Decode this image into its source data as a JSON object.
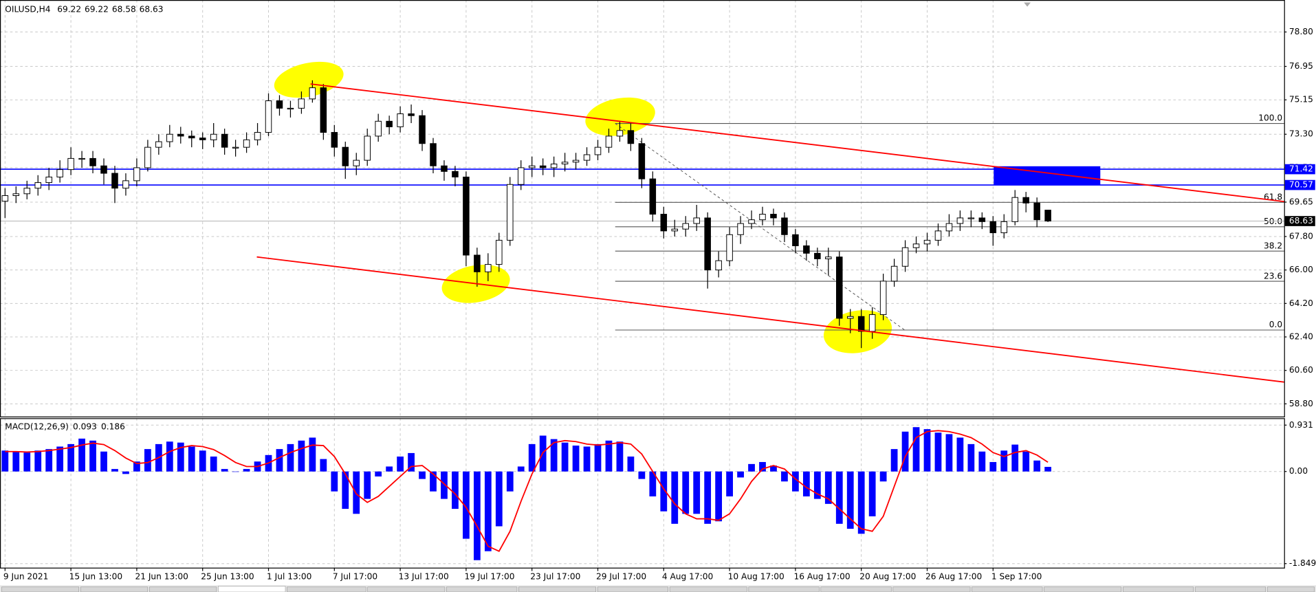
{
  "chart_data": [
    {
      "type": "candlestick",
      "title": "OILUSD,H4",
      "categories": [
        "9 Jun 2021",
        null,
        null,
        null,
        null,
        null,
        "15 Jun 13:00",
        null,
        null,
        null,
        null,
        null,
        "21 Jun 13:00",
        null,
        null,
        null,
        null,
        null,
        "25 Jun 13:00",
        null,
        null,
        null,
        null,
        null,
        "1 Jul 13:00",
        null,
        null,
        null,
        null,
        null,
        "7 Jul 17:00",
        null,
        null,
        null,
        null,
        null,
        "13 Jul 17:00",
        null,
        null,
        null,
        null,
        null,
        "19 Jul 17:00",
        null,
        null,
        null,
        null,
        null,
        "23 Jul 17:00",
        null,
        null,
        null,
        null,
        null,
        "29 Jul 17:00",
        null,
        null,
        null,
        null,
        null,
        "4 Aug 17:00",
        null,
        null,
        null,
        null,
        null,
        "10 Aug 17:00",
        null,
        null,
        null,
        null,
        null,
        "16 Aug 17:00",
        null,
        null,
        null,
        null,
        null,
        "20 Aug 17:00",
        null,
        null,
        null,
        null,
        null,
        "26 Aug 17:00",
        null,
        null,
        null,
        null,
        null,
        "1 Sep 17:00",
        null,
        null,
        null,
        null,
        null
      ],
      "open": [
        69.7,
        70.0,
        70.1,
        70.4,
        70.7,
        71.0,
        71.4,
        72.0,
        72.0,
        71.6,
        71.2,
        70.4,
        70.8,
        71.5,
        72.6,
        72.9,
        73.3,
        73.2,
        73.1,
        73.0,
        73.3,
        72.6,
        72.6,
        73.0,
        73.4,
        75.1,
        74.7,
        74.7,
        75.2,
        75.8,
        73.4,
        72.6,
        71.6,
        71.9,
        73.2,
        74.0,
        73.7,
        74.4,
        74.3,
        72.8,
        71.6,
        71.3,
        71.0,
        66.8,
        65.9,
        66.3,
        67.6,
        70.6,
        71.5,
        71.6,
        71.5,
        71.7,
        71.8,
        71.9,
        72.2,
        72.6,
        73.2,
        73.5,
        72.8,
        70.9,
        69.0,
        68.1,
        68.2,
        68.5,
        68.8,
        66.0,
        66.5,
        67.9,
        68.5,
        68.7,
        69.0,
        68.8,
        67.9,
        67.3,
        66.9,
        66.6,
        66.7,
        63.4,
        63.5,
        62.7,
        63.6,
        65.4,
        66.2,
        67.2,
        67.4,
        67.6,
        68.1,
        68.5,
        68.8,
        68.8,
        68.6,
        68.0,
        68.6,
        69.9,
        69.6,
        69.22
      ],
      "high": [
        70.4,
        70.5,
        70.8,
        71.1,
        71.5,
        71.9,
        72.6,
        72.4,
        72.4,
        72.0,
        71.6,
        71.2,
        72.0,
        73.0,
        73.3,
        73.8,
        73.7,
        73.5,
        73.4,
        73.9,
        73.6,
        73.0,
        73.4,
        73.9,
        75.5,
        75.4,
        75.1,
        75.6,
        76.2,
        76.0,
        73.8,
        72.9,
        72.3,
        73.6,
        74.4,
        74.3,
        74.8,
        74.9,
        74.6,
        73.1,
        71.9,
        71.6,
        71.3,
        67.2,
        66.9,
        68.0,
        71.0,
        71.9,
        72.1,
        72.0,
        72.1,
        72.3,
        72.3,
        72.6,
        73.0,
        73.6,
        74.0,
        73.9,
        73.1,
        71.3,
        69.4,
        68.7,
        68.9,
        69.5,
        69.1,
        67.0,
        68.3,
        68.9,
        69.2,
        69.4,
        69.3,
        69.1,
        68.2,
        67.6,
        67.2,
        67.2,
        67.0,
        63.9,
        63.9,
        64.0,
        65.8,
        66.6,
        67.6,
        67.8,
        68.0,
        68.5,
        69.0,
        69.2,
        69.2,
        69.1,
        68.9,
        69.0,
        70.3,
        70.2,
        69.9,
        69.22
      ],
      "low": [
        68.8,
        69.6,
        69.8,
        70.0,
        70.3,
        70.7,
        71.1,
        71.5,
        71.2,
        70.6,
        69.6,
        70.0,
        70.5,
        71.3,
        72.2,
        72.6,
        72.8,
        72.6,
        72.5,
        72.6,
        72.2,
        72.1,
        72.3,
        72.7,
        73.2,
        74.3,
        74.2,
        74.4,
        75.0,
        73.0,
        72.1,
        70.9,
        71.1,
        71.6,
        72.9,
        73.3,
        73.4,
        73.9,
        72.4,
        71.2,
        70.8,
        70.5,
        66.2,
        65.1,
        65.4,
        65.9,
        67.3,
        70.3,
        71.0,
        71.1,
        71.0,
        71.3,
        71.4,
        71.6,
        71.9,
        72.3,
        72.9,
        72.4,
        70.4,
        68.6,
        67.7,
        67.8,
        67.8,
        68.1,
        65.0,
        65.6,
        66.2,
        67.4,
        68.2,
        68.4,
        68.4,
        67.5,
        66.9,
        66.5,
        66.2,
        65.7,
        63.0,
        62.6,
        61.8,
        62.3,
        63.3,
        65.1,
        65.9,
        66.9,
        67.0,
        67.3,
        67.8,
        68.1,
        68.3,
        68.2,
        67.3,
        67.7,
        68.4,
        69.1,
        68.3,
        68.58
      ],
      "close": [
        70.0,
        70.1,
        70.4,
        70.7,
        71.0,
        71.4,
        72.0,
        72.0,
        71.6,
        71.2,
        70.4,
        70.8,
        71.5,
        72.6,
        72.9,
        73.3,
        73.2,
        73.1,
        73.0,
        73.3,
        72.6,
        72.6,
        73.0,
        73.4,
        75.1,
        74.7,
        74.7,
        75.2,
        75.8,
        73.4,
        72.6,
        71.6,
        71.9,
        73.2,
        74.0,
        73.7,
        74.4,
        74.3,
        72.8,
        71.6,
        71.3,
        71.0,
        66.8,
        65.9,
        66.3,
        67.6,
        70.6,
        71.5,
        71.6,
        71.5,
        71.7,
        71.8,
        71.9,
        72.2,
        72.6,
        73.2,
        73.5,
        72.8,
        70.9,
        69.0,
        68.1,
        68.2,
        68.5,
        68.8,
        66.0,
        66.5,
        67.9,
        68.5,
        68.7,
        69.0,
        68.8,
        67.9,
        67.3,
        66.9,
        66.6,
        66.7,
        63.4,
        63.5,
        62.7,
        63.6,
        65.4,
        66.2,
        67.2,
        67.4,
        67.6,
        68.1,
        68.5,
        68.8,
        68.8,
        68.6,
        68.0,
        68.6,
        69.9,
        69.6,
        68.7,
        68.63
      ],
      "ylim": [
        58.12,
        80.52
      ],
      "yticks": [
        {
          "value": 78.8,
          "label": "78.80"
        },
        76.95,
        75.15,
        {
          "value": 73.3,
          "label": "73.30"
        },
        {
          "value": 71.5,
          "label": "71.50"
        },
        69.65,
        {
          "value": 67.8,
          "label": "67.80"
        },
        {
          "value": 66,
          "label": "66.00"
        },
        {
          "value": 64.2,
          "label": "64.20"
        },
        {
          "value": 62.4,
          "label": "62.40"
        },
        {
          "value": 60.6,
          "label": "60.60"
        },
        {
          "value": 58.8,
          "label": "58.80"
        }
      ],
      "grid": true,
      "hlines": [
        71.42,
        70.57
      ],
      "hline_color": "#0000ff",
      "fibonacci": {
        "high": 73.88,
        "low": 62.77,
        "levels": [
          {
            "value": 100,
            "label": "100.0"
          },
          61.8,
          {
            "value": 50,
            "label": "50.0"
          },
          38.2,
          23.6,
          {
            "value": 0,
            "label": "0.0"
          }
        ]
      }
    },
    {
      "type": "macd",
      "title": "MACD(12,26,9)",
      "histogram": [
        0.42,
        0.4,
        0.38,
        0.42,
        0.45,
        0.5,
        0.55,
        0.66,
        0.62,
        0.4,
        0.05,
        -0.05,
        0.2,
        0.45,
        0.55,
        0.6,
        0.58,
        0.5,
        0.42,
        0.3,
        0.05,
        0.0,
        0.05,
        0.2,
        0.33,
        0.45,
        0.55,
        0.62,
        0.68,
        0.25,
        -0.4,
        -0.75,
        -0.85,
        -0.55,
        -0.1,
        0.1,
        0.3,
        0.37,
        -0.15,
        -0.4,
        -0.55,
        -0.75,
        -1.35,
        -1.78,
        -1.6,
        -1.1,
        -0.4,
        0.1,
        0.55,
        0.72,
        0.65,
        0.58,
        0.52,
        0.5,
        0.55,
        0.62,
        0.6,
        0.3,
        -0.15,
        -0.5,
        -0.8,
        -1.05,
        -0.85,
        -0.85,
        -1.05,
        -1.0,
        -0.5,
        -0.12,
        0.15,
        0.19,
        0.12,
        -0.2,
        -0.4,
        -0.5,
        -0.55,
        -0.65,
        -1.05,
        -1.15,
        -1.25,
        -0.9,
        -0.2,
        0.45,
        0.8,
        0.89,
        0.85,
        0.78,
        0.75,
        0.68,
        0.55,
        0.4,
        0.19,
        0.42,
        0.54,
        0.4,
        0.22,
        0.093
      ],
      "signal": [
        0.4,
        0.4,
        0.39,
        0.4,
        0.42,
        0.45,
        0.48,
        0.53,
        0.57,
        0.54,
        0.42,
        0.27,
        0.16,
        0.18,
        0.28,
        0.4,
        0.48,
        0.52,
        0.5,
        0.44,
        0.32,
        0.18,
        0.1,
        0.1,
        0.17,
        0.28,
        0.38,
        0.46,
        0.53,
        0.52,
        0.3,
        -0.05,
        -0.45,
        -0.62,
        -0.5,
        -0.3,
        -0.1,
        0.1,
        0.12,
        -0.05,
        -0.25,
        -0.45,
        -0.72,
        -1.1,
        -1.5,
        -1.6,
        -1.2,
        -0.6,
        -0.05,
        0.38,
        0.58,
        0.62,
        0.6,
        0.55,
        0.53,
        0.55,
        0.58,
        0.55,
        0.35,
        0.0,
        -0.35,
        -0.65,
        -0.85,
        -0.95,
        -0.95,
        -0.98,
        -0.85,
        -0.55,
        -0.2,
        0.05,
        0.12,
        0.05,
        -0.15,
        -0.32,
        -0.45,
        -0.55,
        -0.75,
        -0.95,
        -1.15,
        -1.2,
        -0.9,
        -0.3,
        0.3,
        0.68,
        0.8,
        0.82,
        0.8,
        0.75,
        0.68,
        0.55,
        0.38,
        0.3,
        0.38,
        0.42,
        0.33,
        0.186
      ],
      "histogram_color": "#0000ff",
      "signal_color": "#ff0000",
      "ylim": [
        -1.93,
        1.07
      ],
      "yticks": [
        0.931,
        {
          "value": 0,
          "label": "0.00"
        },
        -1.849
      ]
    }
  ]
}
